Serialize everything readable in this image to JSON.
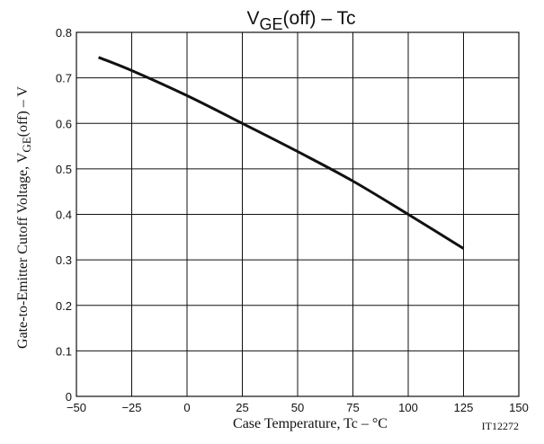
{
  "chart_data": {
    "type": "line",
    "title": {
      "main": "V",
      "sub": "GE",
      "rest": "(off)  –  Tc"
    },
    "xlabel": "Case Temperature, Tc  –  °C",
    "ylabel": {
      "main": "Gate-to-Emitter Cutoff  Voltage, V",
      "sub": "GE",
      "rest": "(off) –  V"
    },
    "code": "IT12272",
    "xlim": [
      -50,
      150
    ],
    "ylim": [
      0,
      0.8
    ],
    "x_ticks": [
      -50,
      -25,
      0,
      25,
      50,
      75,
      100,
      125,
      150
    ],
    "x_tick_labels": [
      "−50",
      "−25",
      "0",
      "25",
      "50",
      "75",
      "100",
      "125",
      "150"
    ],
    "y_ticks": [
      0,
      0.1,
      0.2,
      0.3,
      0.4,
      0.5,
      0.6,
      0.7,
      0.8
    ],
    "y_tick_labels": [
      "0",
      "0.1",
      "0.2",
      "0.3",
      "0.4",
      "0.5",
      "0.6",
      "0.7",
      "0.8"
    ],
    "grid": true,
    "series": [
      {
        "x": [
          -40,
          -25,
          0,
          25,
          50,
          75,
          100,
          125
        ],
        "y": [
          0.745,
          0.716,
          0.661,
          0.6,
          0.538,
          0.473,
          0.4,
          0.325
        ]
      }
    ],
    "line_color": "#111111"
  }
}
